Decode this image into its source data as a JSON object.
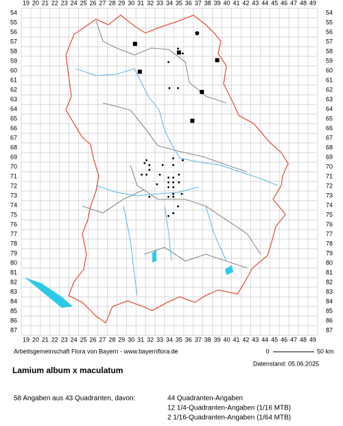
{
  "map": {
    "columns": [
      19,
      20,
      21,
      22,
      23,
      24,
      25,
      26,
      27,
      28,
      29,
      30,
      31,
      32,
      33,
      34,
      35,
      36,
      37,
      38,
      39,
      40,
      41,
      42,
      43,
      44,
      45,
      46,
      47,
      48,
      49
    ],
    "rows": [
      54,
      55,
      56,
      57,
      58,
      59,
      60,
      61,
      62,
      63,
      64,
      65,
      66,
      67,
      68,
      69,
      70,
      71,
      72,
      73,
      74,
      75,
      76,
      77,
      78,
      79,
      80,
      81,
      82,
      83,
      84,
      85,
      86,
      87
    ],
    "markers": [
      {
        "col": 30.4,
        "row": 57.2,
        "type": "square"
      },
      {
        "col": 35.0,
        "row": 58.1,
        "type": "square"
      },
      {
        "col": 39.0,
        "row": 58.9,
        "type": "square"
      },
      {
        "col": 30.9,
        "row": 60.1,
        "type": "square"
      },
      {
        "col": 37.4,
        "row": 62.2,
        "type": "square"
      },
      {
        "col": 36.4,
        "row": 65.2,
        "type": "square"
      },
      {
        "col": 36.9,
        "row": 56.1,
        "type": "large"
      },
      {
        "col": 34.9,
        "row": 57.7,
        "type": "small"
      },
      {
        "col": 35.4,
        "row": 58.2,
        "type": "small"
      },
      {
        "col": 33.9,
        "row": 59.1,
        "type": "small"
      },
      {
        "col": 34.0,
        "row": 61.8,
        "type": "small"
      },
      {
        "col": 34.9,
        "row": 61.8,
        "type": "small"
      },
      {
        "col": 31.6,
        "row": 69.3,
        "type": "small"
      },
      {
        "col": 31.4,
        "row": 69.6,
        "type": "small"
      },
      {
        "col": 31.9,
        "row": 69.8,
        "type": "small"
      },
      {
        "col": 31.9,
        "row": 70.3,
        "type": "small"
      },
      {
        "col": 34.4,
        "row": 69.1,
        "type": "small"
      },
      {
        "col": 35.4,
        "row": 69.3,
        "type": "small"
      },
      {
        "col": 33.3,
        "row": 69.8,
        "type": "small"
      },
      {
        "col": 34.4,
        "row": 69.8,
        "type": "small"
      },
      {
        "col": 31.1,
        "row": 70.8,
        "type": "small"
      },
      {
        "col": 31.6,
        "row": 70.8,
        "type": "small"
      },
      {
        "col": 33.0,
        "row": 70.8,
        "type": "small"
      },
      {
        "col": 33.9,
        "row": 71.1,
        "type": "small"
      },
      {
        "col": 34.4,
        "row": 71.1,
        "type": "small"
      },
      {
        "col": 35.0,
        "row": 70.8,
        "type": "small"
      },
      {
        "col": 33.9,
        "row": 71.6,
        "type": "small"
      },
      {
        "col": 34.4,
        "row": 71.6,
        "type": "small"
      },
      {
        "col": 35.0,
        "row": 71.6,
        "type": "small"
      },
      {
        "col": 32.7,
        "row": 71.8,
        "type": "small"
      },
      {
        "col": 33.9,
        "row": 72.1,
        "type": "small"
      },
      {
        "col": 34.4,
        "row": 72.1,
        "type": "small"
      },
      {
        "col": 33.9,
        "row": 73.1,
        "type": "small"
      },
      {
        "col": 34.4,
        "row": 72.8,
        "type": "small"
      },
      {
        "col": 35.3,
        "row": 72.8,
        "type": "small"
      },
      {
        "col": 31.9,
        "row": 73.1,
        "type": "small"
      },
      {
        "col": 34.4,
        "row": 73.1,
        "type": "small"
      },
      {
        "col": 34.9,
        "row": 74.1,
        "type": "small"
      },
      {
        "col": 34.4,
        "row": 74.8,
        "type": "small"
      },
      {
        "col": 33.9,
        "row": 75.1,
        "type": "small"
      }
    ]
  },
  "footer": {
    "credit": "Arbeitsgemeinschaft Flora von Bayern - www.bayernflora.de",
    "scale_start": "0",
    "scale_end": "50 km",
    "date": "Datenstand: 05.06.2025"
  },
  "title": "Lamium album x maculatum",
  "summary": {
    "total": "58 Angaben aus 43 Quadranten, davon:",
    "lines": [
      "44 Quadranten-Angaben",
      "12 1/4-Quadranten-Angaben (1/16 MTB)",
      "2 1/16-Quadranten-Angaben (1/64 MTB)"
    ]
  }
}
